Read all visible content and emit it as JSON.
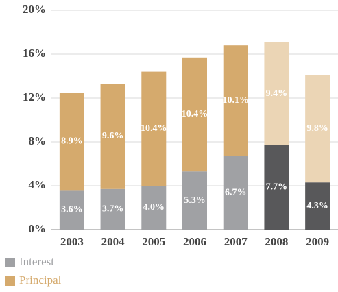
{
  "chart_data": {
    "type": "stacked-bar",
    "categories": [
      "2003",
      "2004",
      "2005",
      "2006",
      "2007",
      "2008",
      "2009"
    ],
    "series": [
      {
        "name": "Interest",
        "color": "#a0a1a4",
        "colors": [
          "#a0a1a4",
          "#a0a1a4",
          "#a0a1a4",
          "#a0a1a4",
          "#a0a1a4",
          "#58585a",
          "#58585a"
        ],
        "values": [
          3.6,
          3.7,
          4.0,
          5.3,
          6.7,
          7.7,
          4.3
        ],
        "value_labels": [
          "3.6%",
          "3.7%",
          "4.0%",
          "5.3%",
          "6.7%",
          "7.7%",
          "4.3%"
        ]
      },
      {
        "name": "Principal",
        "color": "#d5aa6d",
        "colors": [
          "#d5aa6d",
          "#d5aa6d",
          "#d5aa6d",
          "#d5aa6d",
          "#d5aa6d",
          "#ebd5b5",
          "#ebd5b5"
        ],
        "values": [
          8.9,
          9.6,
          10.4,
          10.4,
          10.1,
          9.4,
          9.8
        ],
        "value_labels": [
          "8.9%",
          "9.6%",
          "10.4%",
          "10.4%",
          "10.1%",
          "9.4%",
          "9.8%"
        ]
      }
    ],
    "ylim": [
      0,
      20
    ],
    "yticks": [
      {
        "value": 0,
        "label": "0%"
      },
      {
        "value": 4,
        "label": "4%"
      },
      {
        "value": 8,
        "label": "8%"
      },
      {
        "value": 12,
        "label": "12%"
      },
      {
        "value": 16,
        "label": "16%"
      },
      {
        "value": 20,
        "label": "20%"
      }
    ],
    "grid": true
  }
}
